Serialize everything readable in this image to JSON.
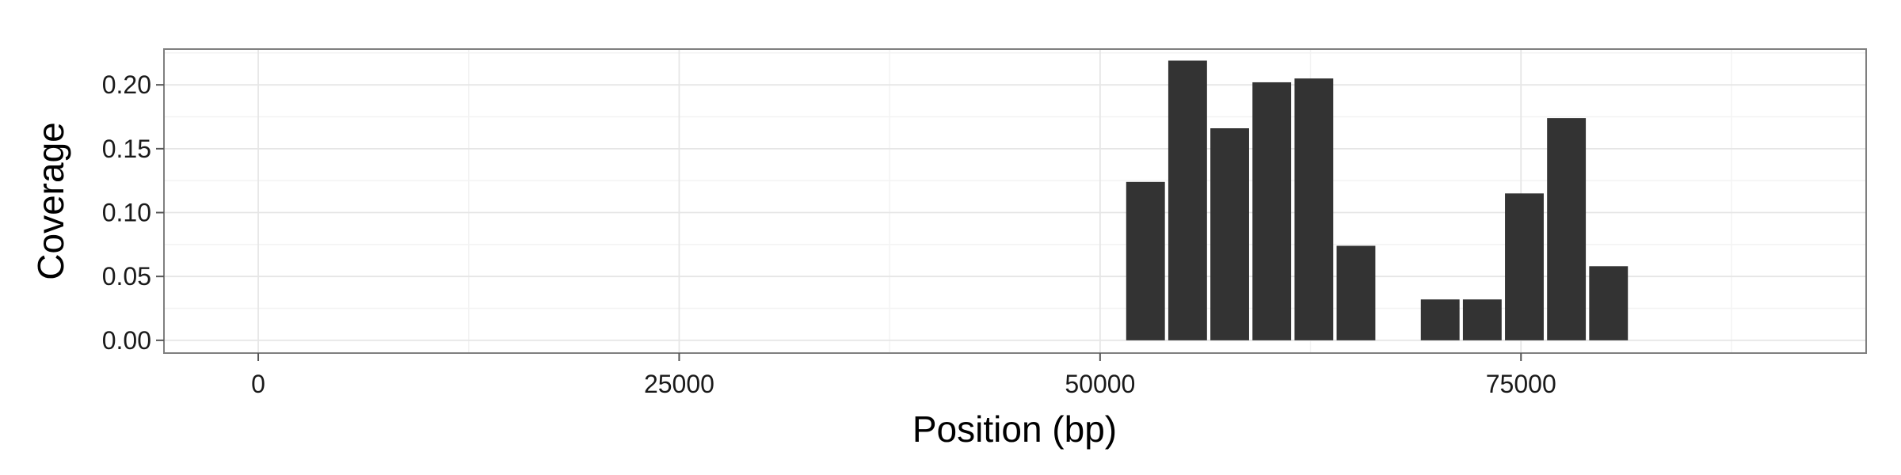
{
  "chart_data": {
    "type": "bar",
    "title": "",
    "xlabel": "Position (bp)",
    "ylabel": "Coverage",
    "xlim": [
      -5600,
      95500
    ],
    "ylim": [
      -0.01,
      0.228
    ],
    "x_ticks": [
      0,
      25000,
      50000,
      75000
    ],
    "x_tick_labels": [
      "0",
      "25000",
      "50000",
      "75000"
    ],
    "y_ticks": [
      0.0,
      0.05,
      0.1,
      0.15,
      0.2
    ],
    "y_tick_labels": [
      "0.00",
      "0.05",
      "0.10",
      "0.15",
      "0.20"
    ],
    "bar_width": 2300,
    "x": [
      52700,
      55200,
      57700,
      60200,
      62700,
      65200,
      70200,
      72700,
      75200,
      77700,
      80200
    ],
    "values": [
      0.124,
      0.219,
      0.166,
      0.202,
      0.205,
      0.074,
      0.032,
      0.032,
      0.115,
      0.174,
      0.058
    ],
    "grid": true,
    "legend": "none",
    "colors": {
      "bar": "#333333",
      "panel_border": "#7f7f7f",
      "grid_major": "#e6e6e6",
      "grid_minor": "#f3f3f3",
      "tick": "#555555"
    }
  }
}
